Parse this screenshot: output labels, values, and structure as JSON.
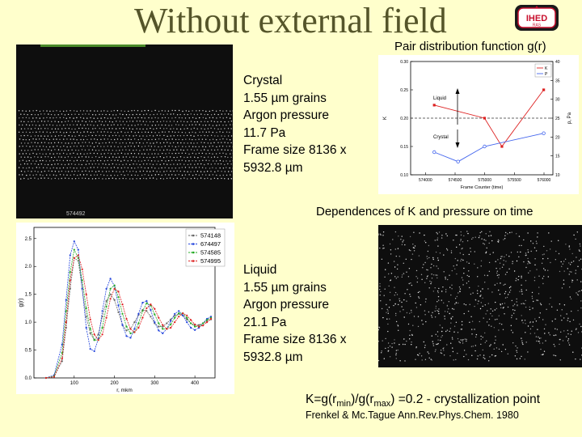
{
  "slide": {
    "title": "Without external field",
    "logo": {
      "text": "IHED",
      "subtext": "RAS",
      "color": "#c8102e"
    },
    "pair_distribution_label": "Pair distribution function g(r)",
    "dependences_label": "Dependences of K and pressure on time",
    "crystal_info": [
      "Crystal",
      "1.55 µm grains",
      "Argon pressure",
      "11.7 Pa",
      "Frame size 8136 x",
      "5932.8 µm"
    ],
    "liquid_info": [
      "Liquid",
      "1.55 µm grains",
      "Argon pressure",
      "21.1 Pa",
      "Frame size 8136 x",
      "5932.8 µm"
    ],
    "crystal_photo_caption": "574492",
    "formula": {
      "prefix": "K=g(r",
      "min": "min",
      "mid": ")/g(r",
      "max": "max",
      "suffix": ") =0.2 - crystallization point"
    },
    "citation": "Frenkel & Mc.Tague Ann.Rev.Phys.Chem. 1980"
  },
  "chart_data": [
    {
      "type": "line",
      "title": "",
      "xlabel": "Frame Counter (time)",
      "ylabel_left": "K",
      "ylabel_right": "p, Pa",
      "x": [
        574000,
        574500,
        575000,
        575500,
        576000
      ],
      "x_tick_labels": [
        "574000",
        "574500",
        "575000",
        "575500",
        "576000"
      ],
      "xlim": [
        573750,
        576150
      ],
      "ylim_left": [
        0.1,
        0.3
      ],
      "y_ticks_left": [
        "0.10",
        "0.15",
        "0.20",
        "0.25",
        "0.30"
      ],
      "ylim_right": [
        10,
        40
      ],
      "y_ticks_right": [
        "10",
        "15",
        "20",
        "25",
        "30",
        "35",
        "40"
      ],
      "series": [
        {
          "name": "K",
          "axis": "left",
          "color": "#dd2222",
          "x": [
            574148,
            574997,
            575290,
            575995
          ],
          "values": [
            0.223,
            0.2,
            0.15,
            0.25
          ]
        },
        {
          "name": "P",
          "axis": "right",
          "color": "#4466ee",
          "x": [
            574148,
            574550,
            574997,
            575995
          ],
          "values": [
            16,
            13.5,
            17.5,
            21
          ]
        }
      ],
      "threshold": {
        "axis": "left",
        "value": 0.2
      },
      "annotations": [
        {
          "text": "Liquid",
          "direction": "up"
        },
        {
          "text": "Crystal",
          "direction": "down"
        }
      ]
    },
    {
      "type": "line",
      "title": "",
      "xlabel": "r, mkm",
      "ylabel": "g(r)",
      "xlim": [
        0,
        450
      ],
      "x_ticks": [
        "100",
        "200",
        "300",
        "400"
      ],
      "ylim": [
        0,
        2.7
      ],
      "y_ticks": [
        "0.0",
        "0.5",
        "1.0",
        "1.5",
        "2.0",
        "2.5"
      ],
      "x": [
        30,
        50,
        70,
        80,
        90,
        100,
        110,
        120,
        130,
        140,
        150,
        160,
        170,
        180,
        190,
        200,
        210,
        220,
        230,
        240,
        250,
        260,
        270,
        280,
        290,
        300,
        310,
        320,
        330,
        340,
        350,
        360,
        370,
        380,
        390,
        400,
        410,
        420,
        430,
        440
      ],
      "series": [
        {
          "name": "574148",
          "color": "#666666",
          "values": [
            0.0,
            0.02,
            0.3,
            0.9,
            1.6,
            2.15,
            2.1,
            1.6,
            1.1,
            0.8,
            0.68,
            0.78,
            1.1,
            1.38,
            1.5,
            1.4,
            1.18,
            0.95,
            0.85,
            0.88,
            1.0,
            1.13,
            1.22,
            1.2,
            1.1,
            0.98,
            0.92,
            0.92,
            0.98,
            1.05,
            1.12,
            1.15,
            1.12,
            1.05,
            0.98,
            0.95,
            0.95,
            0.98,
            1.02,
            1.05
          ]
        },
        {
          "name": "674497",
          "color": "#2244dd",
          "values": [
            0.0,
            0.05,
            0.6,
            1.4,
            2.2,
            2.45,
            2.3,
            1.6,
            0.9,
            0.52,
            0.48,
            0.7,
            1.2,
            1.6,
            1.78,
            1.65,
            1.3,
            0.95,
            0.75,
            0.72,
            0.88,
            1.15,
            1.35,
            1.38,
            1.22,
            1.0,
            0.85,
            0.8,
            0.88,
            1.02,
            1.15,
            1.2,
            1.12,
            1.0,
            0.9,
            0.86,
            0.9,
            0.98,
            1.06,
            1.1
          ]
        },
        {
          "name": "574585",
          "color": "#22aa22",
          "values": [
            0.0,
            0.03,
            0.45,
            1.2,
            1.9,
            2.3,
            2.15,
            1.75,
            1.25,
            0.88,
            0.68,
            0.68,
            0.9,
            1.28,
            1.6,
            1.66,
            1.45,
            1.15,
            0.92,
            0.8,
            0.82,
            0.98,
            1.2,
            1.34,
            1.3,
            1.14,
            0.98,
            0.88,
            0.88,
            0.96,
            1.08,
            1.16,
            1.16,
            1.08,
            0.98,
            0.92,
            0.92,
            0.98,
            1.04,
            1.08
          ]
        },
        {
          "name": "574995",
          "color": "#dd2222",
          "values": [
            0.0,
            0.02,
            0.35,
            1.0,
            1.75,
            2.15,
            2.2,
            1.95,
            1.5,
            1.05,
            0.78,
            0.68,
            0.78,
            1.08,
            1.42,
            1.6,
            1.55,
            1.32,
            1.06,
            0.88,
            0.82,
            0.9,
            1.08,
            1.25,
            1.32,
            1.24,
            1.08,
            0.95,
            0.88,
            0.9,
            1.0,
            1.1,
            1.16,
            1.12,
            1.04,
            0.96,
            0.92,
            0.94,
            1.0,
            1.06
          ]
        }
      ]
    }
  ]
}
